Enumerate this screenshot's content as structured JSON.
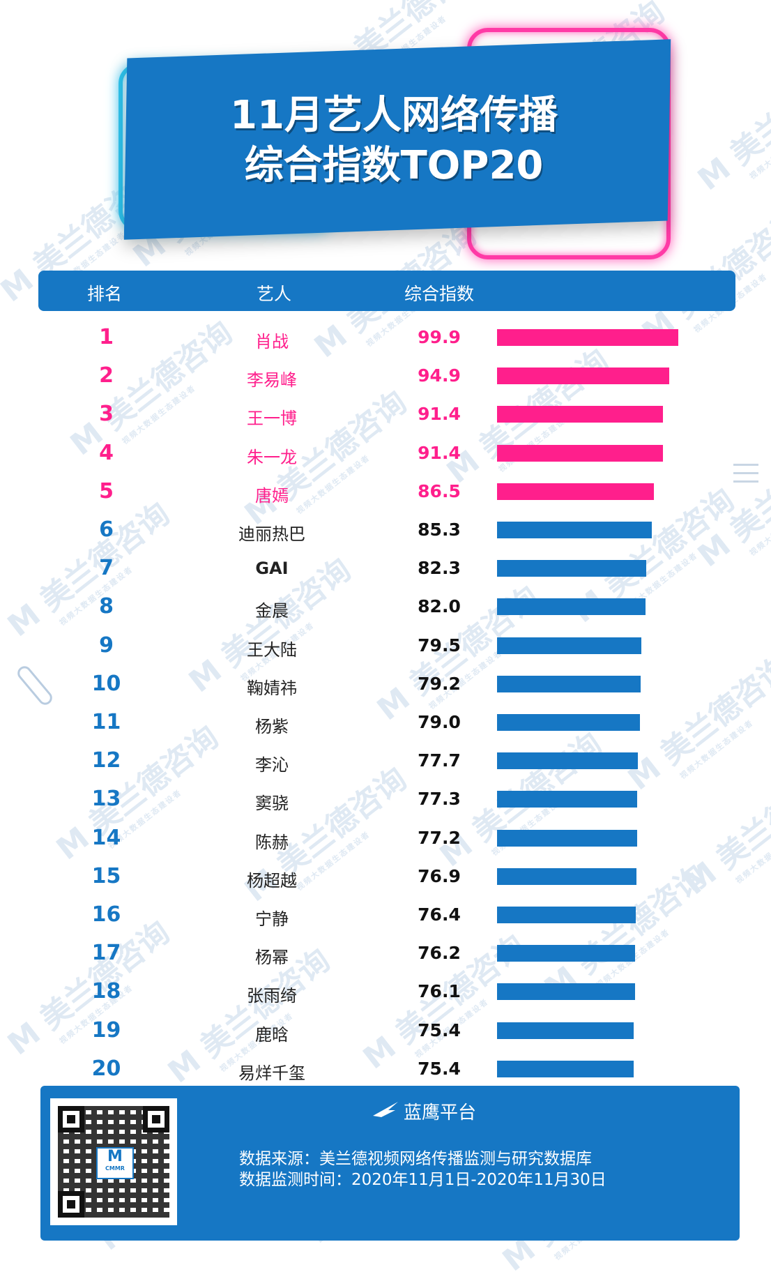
{
  "title": {
    "line1": "11月艺人网络传播",
    "line2": "综合指数TOP20"
  },
  "watermark": {
    "text": "美兰德咨询",
    "sub": "视频大数据生态建设者",
    "mark": "M"
  },
  "header": {
    "col_rank": "排名",
    "col_artist": "艺人",
    "col_index": "综合指数"
  },
  "chart_data": {
    "type": "bar",
    "orientation": "horizontal",
    "title": "11月艺人网络传播综合指数TOP20",
    "xlim": [
      0,
      100
    ],
    "highlight_top_n": 5,
    "colors": {
      "top": "#ff1f8c",
      "rest": "#1677c4"
    },
    "rows": [
      {
        "rank": "1",
        "name": "肖战",
        "value": 99.9
      },
      {
        "rank": "2",
        "name": "李易峰",
        "value": 94.9
      },
      {
        "rank": "3",
        "name": "王一博",
        "value": 91.4
      },
      {
        "rank": "4",
        "name": "朱一龙",
        "value": 91.4
      },
      {
        "rank": "5",
        "name": "唐嫣",
        "value": 86.5
      },
      {
        "rank": "6",
        "name": "迪丽热巴",
        "value": 85.3
      },
      {
        "rank": "7",
        "name": "GAI",
        "value": 82.3
      },
      {
        "rank": "8",
        "name": "金晨",
        "value": 82.0
      },
      {
        "rank": "9",
        "name": "王大陆",
        "value": 79.5
      },
      {
        "rank": "10",
        "name": "鞠婧祎",
        "value": 79.2
      },
      {
        "rank": "11",
        "name": "杨紫",
        "value": 79.0
      },
      {
        "rank": "12",
        "name": "李沁",
        "value": 77.7
      },
      {
        "rank": "13",
        "name": "窦骁",
        "value": 77.3
      },
      {
        "rank": "14",
        "name": "陈赫",
        "value": 77.2
      },
      {
        "rank": "15",
        "name": "杨超越",
        "value": 76.9
      },
      {
        "rank": "16",
        "name": "宁静",
        "value": 76.4
      },
      {
        "rank": "17",
        "name": "杨幂",
        "value": 76.2
      },
      {
        "rank": "18",
        "name": "张雨绮",
        "value": 76.1
      },
      {
        "rank": "19",
        "name": "鹿晗",
        "value": 75.4
      },
      {
        "rank": "20",
        "name": "易烊千玺",
        "value": 75.4
      }
    ]
  },
  "footer": {
    "brand": "蓝鹰平台",
    "brand_icon": "eagle-icon",
    "source": "数据来源：美兰德视频网络传播监测与研究数据库",
    "period": "数据监测时间：2020年11月1日-2020年11月30日",
    "qr_center": "M",
    "qr_center_sub": "CMMR"
  }
}
